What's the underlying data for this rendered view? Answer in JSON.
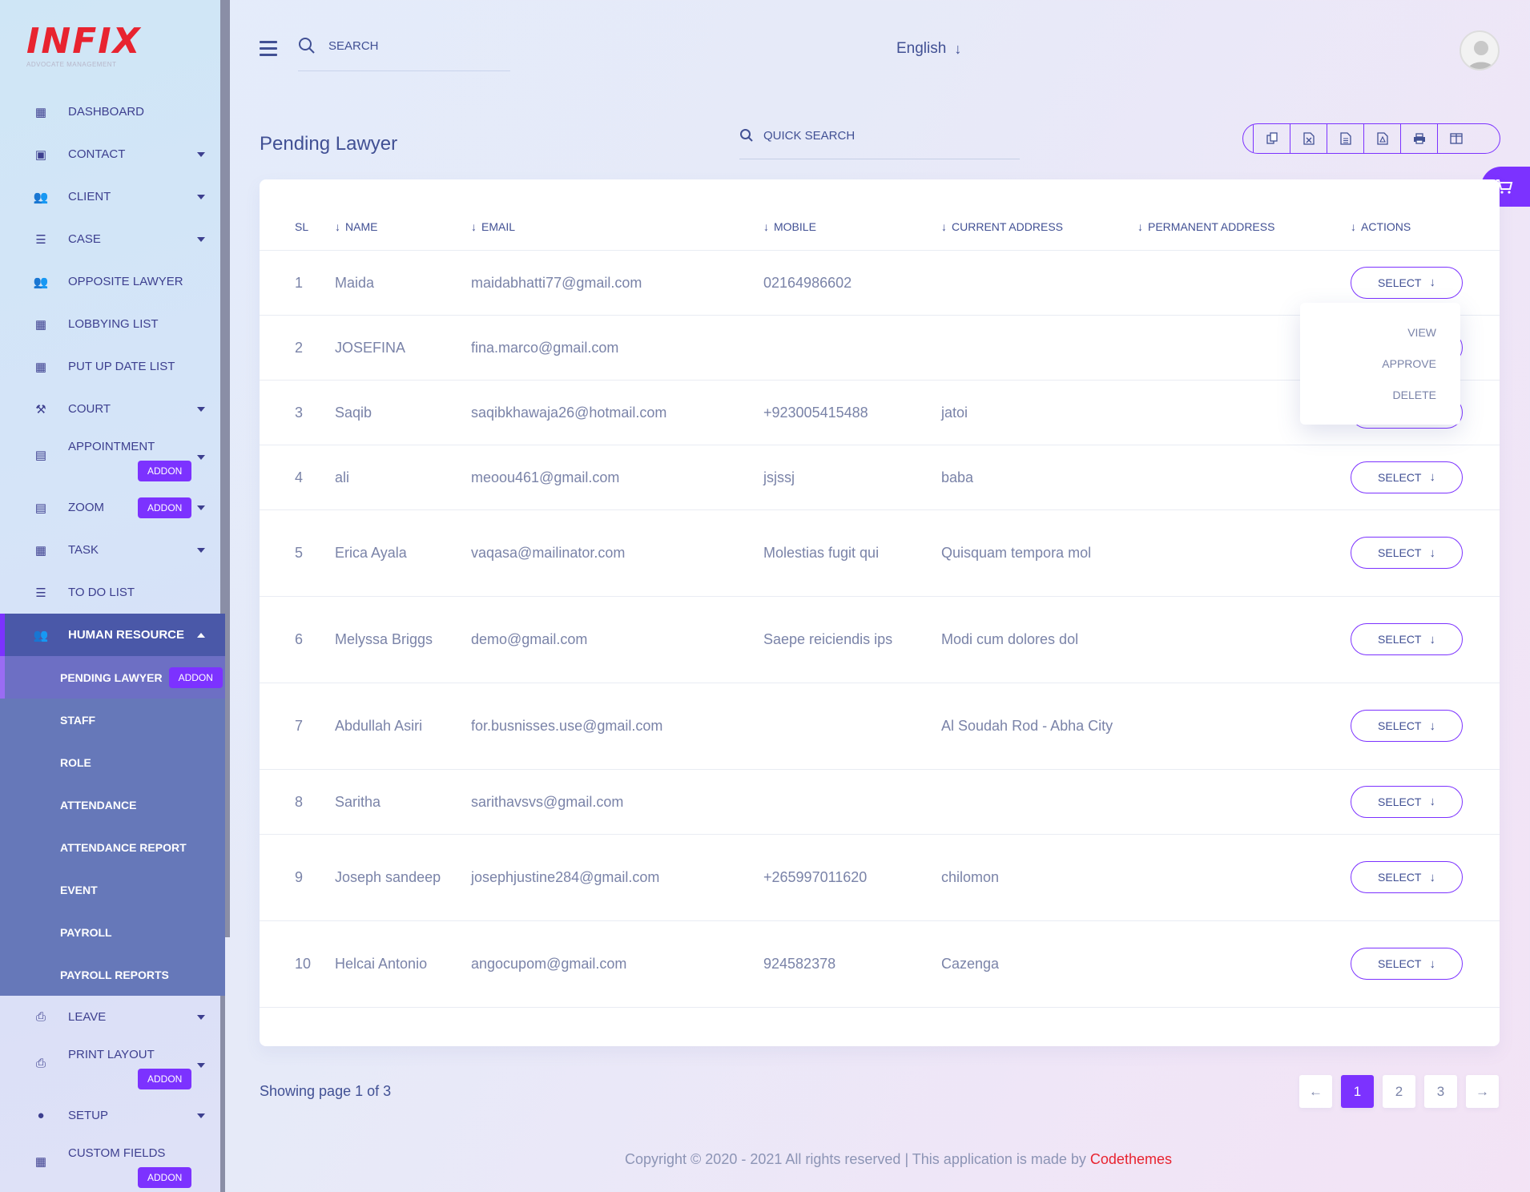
{
  "brand": {
    "logo": "INFIX",
    "tagline": "ADVOCATE MANAGEMENT"
  },
  "sidebar": {
    "items": [
      {
        "label": "DASHBOARD",
        "icon": "grid-icon",
        "caret": false
      },
      {
        "label": "CONTACT",
        "icon": "contact-card-icon",
        "caret": true
      },
      {
        "label": "CLIENT",
        "icon": "users-icon",
        "caret": true
      },
      {
        "label": "CASE",
        "icon": "list-icon",
        "caret": true
      },
      {
        "label": "OPPOSITE LAWYER",
        "icon": "users-icon",
        "caret": false
      },
      {
        "label": "LOBBYING LIST",
        "icon": "grid-icon",
        "caret": false
      },
      {
        "label": "PUT UP DATE LIST",
        "icon": "grid-icon",
        "caret": false
      },
      {
        "label": "COURT",
        "icon": "gavel-icon",
        "caret": true
      },
      {
        "label": "APPOINTMENT",
        "icon": "calendar-icon",
        "caret": true,
        "addon": "ADDON"
      },
      {
        "label": "ZOOM",
        "icon": "calendar-icon",
        "caret": true,
        "addon": "ADDON"
      },
      {
        "label": "TASK",
        "icon": "grid-icon",
        "caret": true
      },
      {
        "label": "TO DO LIST",
        "icon": "list-icon",
        "caret": false
      },
      {
        "label": "HUMAN RESOURCE",
        "icon": "users-icon",
        "caret": true,
        "expanded": true
      }
    ],
    "hr_submenu": [
      {
        "label": "PENDING LAWYER",
        "addon": "ADDON",
        "current": true
      },
      {
        "label": "STAFF"
      },
      {
        "label": "ROLE"
      },
      {
        "label": "ATTENDANCE"
      },
      {
        "label": "ATTENDANCE REPORT"
      },
      {
        "label": "EVENT"
      },
      {
        "label": "PAYROLL"
      },
      {
        "label": "PAYROLL REPORTS"
      }
    ],
    "items_after": [
      {
        "label": "LEAVE",
        "icon": "printer-icon",
        "caret": true
      },
      {
        "label": "PRINT LAYOUT",
        "icon": "print-layout-icon",
        "caret": true,
        "addon": "ADDON"
      },
      {
        "label": "SETUP",
        "icon": "user-icon",
        "caret": true
      },
      {
        "label": "CUSTOM FIELDS",
        "icon": "grid-icon",
        "caret": false,
        "addon": "ADDON"
      }
    ]
  },
  "topbar": {
    "search_label": "SEARCH",
    "language": "English"
  },
  "page": {
    "title": "Pending Lawyer",
    "quick_search": "QUICK SEARCH",
    "export_icons": [
      "copy-icon",
      "excel-icon",
      "csv-icon",
      "pdf-icon",
      "print-icon",
      "columns-icon"
    ]
  },
  "table": {
    "headers": {
      "sl": "SL",
      "name": "NAME",
      "email": "EMAIL",
      "mobile": "MOBILE",
      "current": "CURRENT ADDRESS",
      "permanent": "PERMANENT ADDRESS",
      "actions": "ACTIONS"
    },
    "select_label": "SELECT",
    "rows": [
      {
        "sl": "1",
        "name": "Maida",
        "email": "maidabhatti77@gmail.com",
        "mobile": "02164986602",
        "current": "",
        "permanent": ""
      },
      {
        "sl": "2",
        "name": "JOSEFINA",
        "email": "fina.marco@gmail.com",
        "mobile": "",
        "current": "",
        "permanent": ""
      },
      {
        "sl": "3",
        "name": "Saqib",
        "email": "saqibkhawaja26@hotmail.com",
        "mobile": "+923005415488",
        "current": "jatoi",
        "permanent": ""
      },
      {
        "sl": "4",
        "name": "ali",
        "email": "meoou461@gmail.com",
        "mobile": "jsjssj",
        "current": "baba",
        "permanent": ""
      },
      {
        "sl": "5",
        "name": "Erica Ayala",
        "email": "vaqasa@mailinator.com",
        "mobile": "Molestias fugit qui",
        "current": "Quisquam tempora mol",
        "permanent": ""
      },
      {
        "sl": "6",
        "name": "Melyssa Briggs",
        "email": "demo@gmail.com",
        "mobile": "Saepe reiciendis ips",
        "current": "Modi cum dolores dol",
        "permanent": ""
      },
      {
        "sl": "7",
        "name": "Abdullah Asiri",
        "email": "for.busnisses.use@gmail.com",
        "mobile": "",
        "current": "Al Soudah Rod - Abha City",
        "permanent": ""
      },
      {
        "sl": "8",
        "name": "Saritha",
        "email": "sarithavsvs@gmail.com",
        "mobile": "",
        "current": "",
        "permanent": ""
      },
      {
        "sl": "9",
        "name": "Joseph sandeep",
        "email": "josephjustine284@gmail.com",
        "mobile": "+265997011620",
        "current": "chilomon",
        "permanent": ""
      },
      {
        "sl": "10",
        "name": "Helcai Antonio",
        "email": "angocupom@gmail.com",
        "mobile": "924582378",
        "current": "Cazenga",
        "permanent": ""
      }
    ]
  },
  "dropdown": {
    "items": [
      "VIEW",
      "APPROVE",
      "DELETE"
    ]
  },
  "pagination": {
    "showing": "Showing page 1 of 3",
    "pages": [
      "1",
      "2",
      "3"
    ],
    "current": "1"
  },
  "footer": {
    "text": "Copyright © 2020 - 2021 All rights reserved | This application is made by ",
    "brand": "Codethemes"
  },
  "colors": {
    "accent": "#7c32ff",
    "primary_text": "#415094",
    "muted_text": "#7a83a8",
    "brand_red": "#e8232f"
  }
}
